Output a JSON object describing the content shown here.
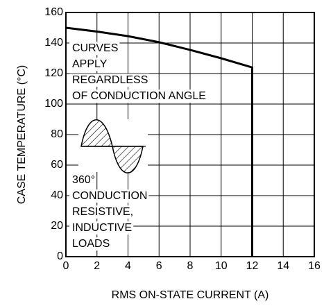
{
  "chart_data": {
    "type": "line",
    "x_label": "RMS ON-STATE CURRENT  (A)",
    "y_label": "CASE TEMPERATURE  (°C)",
    "xlim": [
      0,
      16
    ],
    "xticks": [
      0,
      2,
      4,
      6,
      8,
      10,
      12,
      14,
      16
    ],
    "ylim": [
      0,
      160
    ],
    "yticks": [
      0,
      20,
      40,
      60,
      80,
      100,
      120,
      140,
      160
    ],
    "grid": true,
    "x": [
      0,
      2,
      4,
      6,
      8,
      10,
      12,
      12
    ],
    "series": [
      {
        "color": "#000000",
        "values": [
          150,
          147.5,
          144.5,
          140.5,
          135.5,
          130,
          124,
          0
        ]
      }
    ],
    "annotations": [
      [
        "CURVES",
        "APPLY",
        "REGARDLESS",
        "OF CONDUCTION ANGLE"
      ],
      [
        "360°",
        "CONDUCTION",
        "RESISTIVE,",
        "INDUCTIVE",
        "LOADS"
      ]
    ]
  }
}
